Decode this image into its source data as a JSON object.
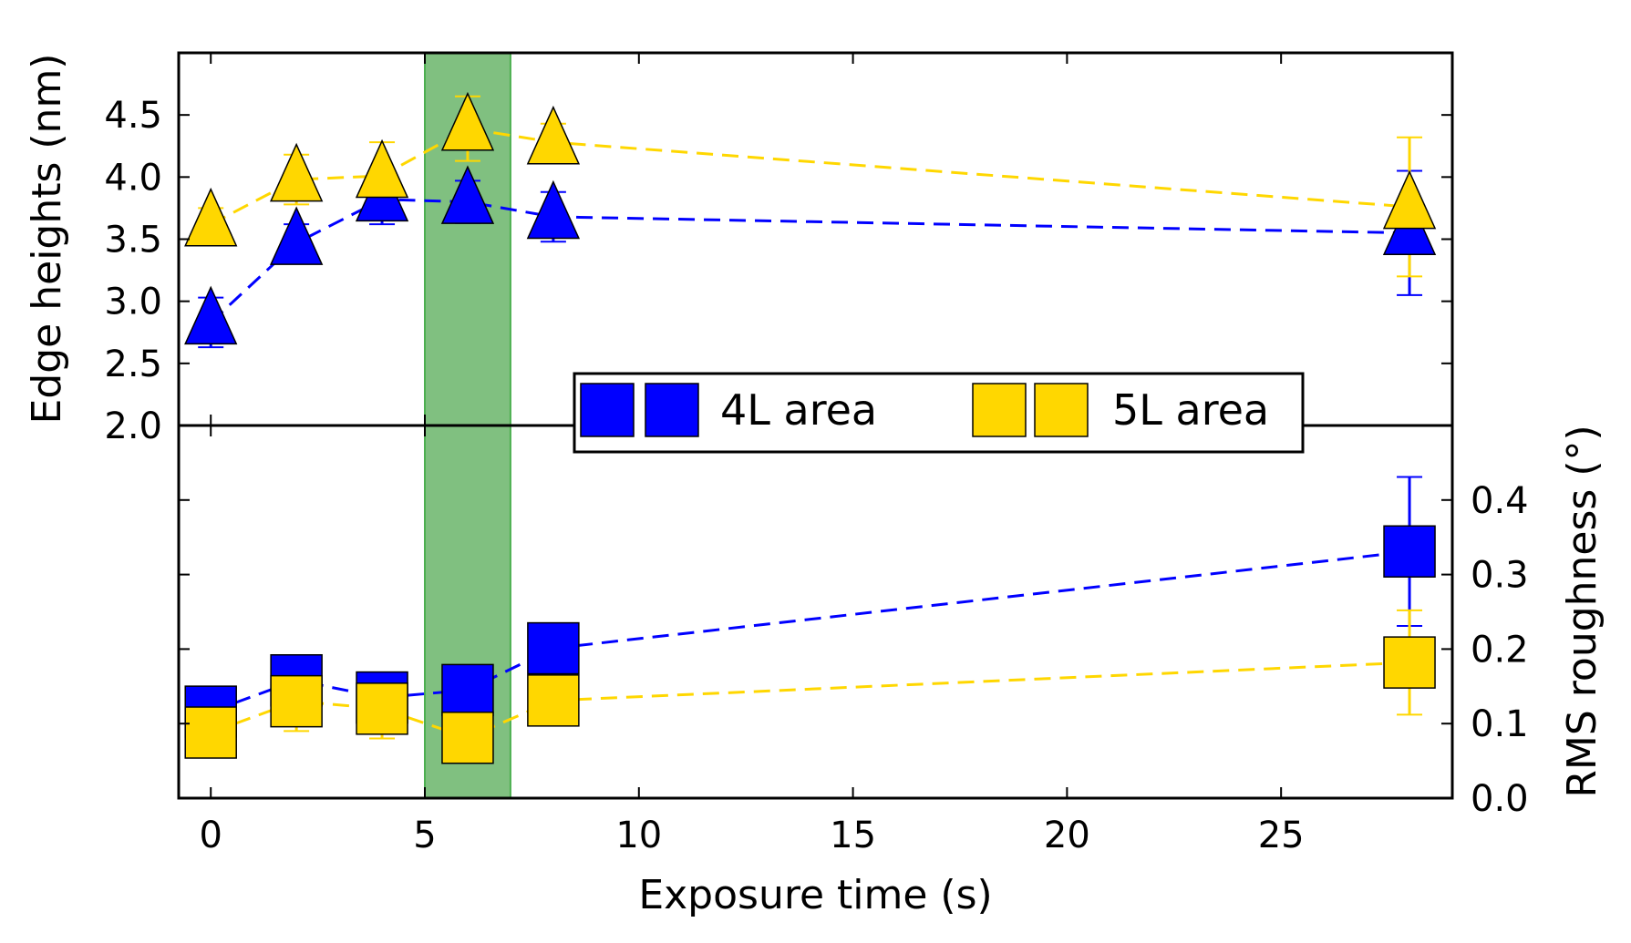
{
  "chart_data": [
    {
      "panel": "top",
      "type": "scatter",
      "xlabel": "Exposure time (s)",
      "ylabel": "Edge heights (nm)",
      "xlim": [
        -0.75,
        29
      ],
      "ylim": [
        2.0,
        5.0
      ],
      "xticks": [
        0,
        5,
        10,
        15,
        20,
        25
      ],
      "yticks": [
        2.0,
        2.5,
        3.0,
        3.5,
        4.0,
        4.5
      ],
      "yticklabels": [
        "2.0",
        "2.5",
        "3.0",
        "3.5",
        "4.0",
        "4.5"
      ],
      "marker": "triangle",
      "grid": false,
      "series": [
        {
          "name": "4L area",
          "color": "#0000ff",
          "x": [
            0,
            2,
            4,
            6,
            8,
            28
          ],
          "y": [
            2.83,
            3.47,
            3.82,
            3.8,
            3.68,
            3.55
          ],
          "err": [
            0.2,
            0.15,
            0.2,
            0.17,
            0.2,
            0.5
          ]
        },
        {
          "name": "5L area",
          "color": "#ffd700",
          "x": [
            0,
            2,
            4,
            6,
            8,
            28
          ],
          "y": [
            3.62,
            3.98,
            4.01,
            4.39,
            4.28,
            3.76
          ],
          "err": [
            0.13,
            0.2,
            0.27,
            0.26,
            0.15,
            0.56
          ]
        }
      ]
    },
    {
      "panel": "bottom",
      "type": "scatter",
      "ylabel": "RMS roughness (°)",
      "xlim": [
        -0.75,
        29
      ],
      "ylim": [
        0.0,
        0.5
      ],
      "yticks": [
        0.0,
        0.1,
        0.2,
        0.3,
        0.4
      ],
      "yticklabels": [
        "0.0",
        "0.1",
        "0.2",
        "0.3",
        "0.4"
      ],
      "marker": "square",
      "grid": false,
      "series": [
        {
          "name": "4L area",
          "color": "#0000ff",
          "x": [
            0,
            2,
            4,
            6,
            8,
            28
          ],
          "y": [
            0.116,
            0.158,
            0.135,
            0.145,
            0.201,
            0.331
          ],
          "err": [
            0.0,
            0.02,
            0.025,
            0.0,
            0.012,
            0.1
          ]
        },
        {
          "name": "5L area",
          "color": "#ffd700",
          "x": [
            0,
            2,
            4,
            6,
            8,
            28
          ],
          "y": [
            0.088,
            0.13,
            0.12,
            0.081,
            0.131,
            0.182
          ],
          "err": [
            0.0,
            0.04,
            0.04,
            0.0,
            0.025,
            0.07
          ]
        }
      ]
    }
  ],
  "shaded_region": {
    "x": [
      5,
      7
    ],
    "color": "#80c080"
  },
  "legend": {
    "placement": "center",
    "items": [
      {
        "label": "4L area",
        "color": "#0000ff"
      },
      {
        "label": "5L area",
        "color": "#ffd700"
      }
    ]
  }
}
